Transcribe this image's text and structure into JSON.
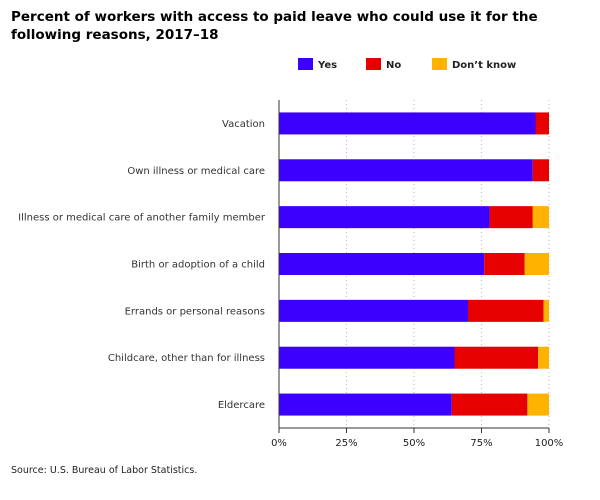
{
  "title": "Percent of workers with access to paid leave who could use it for the following reasons, 2017–18",
  "source": "Source: U.S. Bureau of Labor Statistics.",
  "chart_data": {
    "type": "bar",
    "orientation": "horizontal",
    "stacked": true,
    "categories": [
      "Vacation",
      "Own illness or medical care",
      "Illness or medical care of another family member",
      "Birth or adoption of a child",
      "Errands or personal reasons",
      "Childcare, other than for illness",
      "Eldercare"
    ],
    "series": [
      {
        "name": "Yes",
        "color": "#3B00FF",
        "values": [
          95,
          94,
          78,
          76,
          70,
          65,
          64
        ]
      },
      {
        "name": "No",
        "color": "#E60000",
        "values": [
          5,
          6,
          16,
          15,
          28,
          31,
          28
        ]
      },
      {
        "name": "Don’t know",
        "color": "#FFB300",
        "values": [
          0,
          0,
          6,
          9,
          2,
          4,
          8
        ]
      }
    ],
    "xlim": [
      0,
      100
    ],
    "xticks": [
      "0%",
      "25%",
      "50%",
      "75%",
      "100%"
    ],
    "grid": true,
    "legend": "top"
  }
}
